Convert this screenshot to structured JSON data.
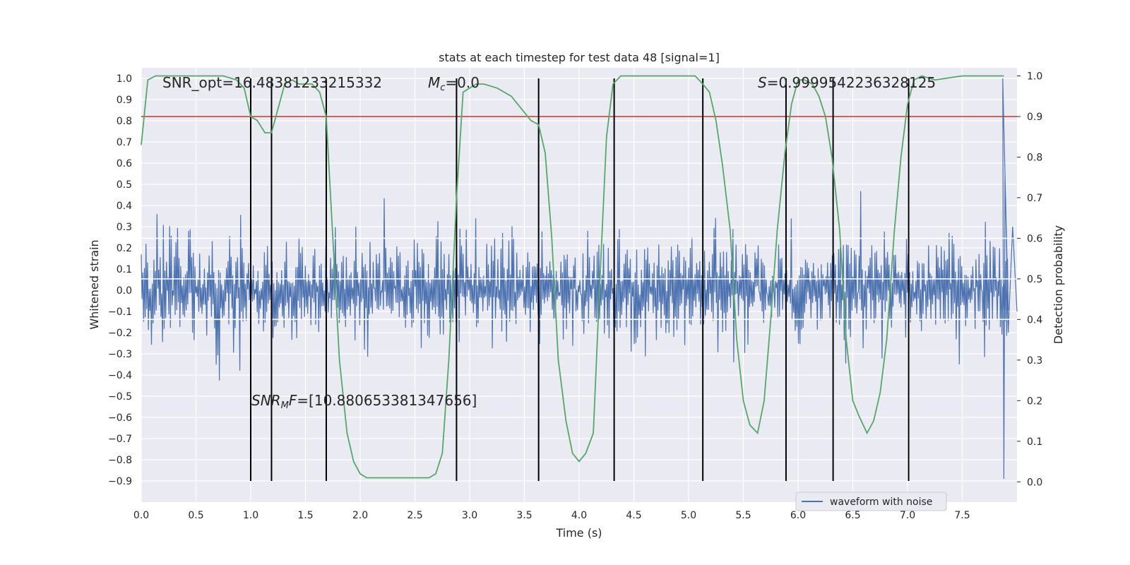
{
  "chart_data": {
    "type": "line",
    "title": "stats at each timestep for test data 48 [signal=1]",
    "xlabel": "Time (s)",
    "ylabel": "Whitened strain",
    "y2label": "Detection probability",
    "xlim": [
      0.0,
      8.0
    ],
    "ylim": [
      -1.0,
      1.05
    ],
    "y2lim": [
      -0.05,
      1.02
    ],
    "xticks": [
      "0.0",
      "0.5",
      "1.0",
      "1.5",
      "2.0",
      "2.5",
      "3.0",
      "3.5",
      "4.0",
      "4.5",
      "5.0",
      "5.5",
      "6.0",
      "6.5",
      "7.0",
      "7.5"
    ],
    "yticks": [
      "1.0",
      "0.9",
      "0.8",
      "0.7",
      "0.6",
      "0.5",
      "0.4",
      "0.3",
      "0.2",
      "0.1",
      "0.0",
      "−0.1",
      "−0.2",
      "−0.3",
      "−0.4",
      "−0.5",
      "−0.6",
      "−0.7",
      "−0.8",
      "−0.9"
    ],
    "y2ticks": [
      "1.0",
      "0.9",
      "0.8",
      "0.7",
      "0.6",
      "0.5",
      "0.4",
      "0.3",
      "0.2",
      "0.1",
      "0.0"
    ],
    "annotations": {
      "snr_opt": "SNR_opt=16.48381233215332",
      "mc": "=0.0",
      "mc_symbol": "M",
      "mc_sub": "c",
      "s": "=0.9999542236328125",
      "s_symbol": "S",
      "snr_mf": "=[10.880653381347656]",
      "snr_mf_symbol": "SNR",
      "snr_mf_sub": "M",
      "snr_mf_f": "F"
    },
    "legend": {
      "label": "waveform with noise",
      "placement": "lower-right"
    },
    "threshold_line": {
      "y2": 0.9,
      "color": "#c0392b"
    },
    "white_hlines_y2": [
      0.6,
      0.5,
      0.4
    ],
    "vlines_x": [
      1.0,
      1.19,
      1.69,
      2.88,
      3.63,
      4.32,
      5.13,
      5.89,
      6.32,
      7.01
    ],
    "vline_range_y": [
      -0.9,
      1.0
    ],
    "detection_probability": {
      "name": "Detection probability",
      "color": "#55a868",
      "x": [
        0.0,
        0.06,
        0.13,
        0.25,
        0.5,
        0.75,
        0.87,
        0.94,
        1.0,
        1.06,
        1.13,
        1.19,
        1.25,
        1.31,
        1.38,
        1.44,
        1.5,
        1.56,
        1.63,
        1.69,
        1.75,
        1.81,
        1.88,
        1.94,
        2.0,
        2.06,
        2.13,
        2.25,
        2.5,
        2.63,
        2.69,
        2.75,
        2.81,
        2.88,
        2.94,
        3.0,
        3.06,
        3.13,
        3.25,
        3.38,
        3.44,
        3.5,
        3.56,
        3.63,
        3.69,
        3.75,
        3.81,
        3.88,
        3.94,
        4.0,
        4.06,
        4.13,
        4.19,
        4.25,
        4.31,
        4.38,
        4.44,
        4.5,
        4.75,
        5.0,
        5.06,
        5.13,
        5.19,
        5.25,
        5.31,
        5.38,
        5.44,
        5.5,
        5.56,
        5.63,
        5.69,
        5.75,
        5.81,
        5.88,
        5.94,
        6.0,
        6.06,
        6.13,
        6.19,
        6.25,
        6.31,
        6.38,
        6.44,
        6.5,
        6.56,
        6.63,
        6.69,
        6.75,
        6.81,
        6.88,
        6.94,
        7.0,
        7.06,
        7.13,
        7.25,
        7.5,
        7.63,
        7.75,
        7.88
      ],
      "y": [
        0.83,
        0.99,
        1.0,
        1.0,
        1.0,
        1.0,
        0.99,
        0.97,
        0.9,
        0.89,
        0.86,
        0.86,
        0.92,
        0.98,
        0.99,
        0.98,
        0.98,
        0.98,
        0.96,
        0.9,
        0.6,
        0.3,
        0.12,
        0.05,
        0.02,
        0.01,
        0.01,
        0.01,
        0.01,
        0.01,
        0.02,
        0.07,
        0.3,
        0.7,
        0.96,
        0.97,
        0.98,
        0.98,
        0.97,
        0.95,
        0.93,
        0.91,
        0.89,
        0.88,
        0.81,
        0.6,
        0.3,
        0.15,
        0.07,
        0.05,
        0.07,
        0.12,
        0.5,
        0.85,
        0.98,
        1.0,
        1.0,
        1.0,
        1.0,
        1.0,
        1.0,
        0.98,
        0.96,
        0.89,
        0.78,
        0.62,
        0.35,
        0.2,
        0.14,
        0.12,
        0.2,
        0.4,
        0.62,
        0.81,
        0.93,
        0.99,
        0.99,
        0.98,
        0.95,
        0.9,
        0.8,
        0.62,
        0.35,
        0.2,
        0.16,
        0.12,
        0.15,
        0.22,
        0.35,
        0.62,
        0.8,
        0.93,
        0.99,
        1.0,
        0.99,
        1.0,
        1.0,
        1.0,
        1.0
      ]
    },
    "waveform": {
      "name": "waveform with noise",
      "color": "#4c72b0",
      "summary": {
        "typical_min": -0.3,
        "typical_max": 0.3,
        "peak_max": 1.0,
        "peak_min": -0.89,
        "peak_time": 7.88
      }
    }
  }
}
